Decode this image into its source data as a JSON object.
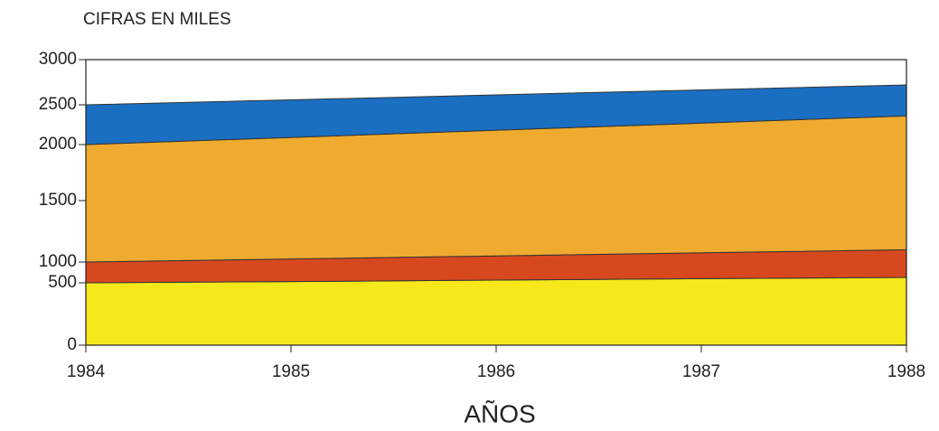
{
  "chart_data": {
    "type": "stacked-area",
    "title": "CIFRAS EN MILES",
    "x_label": "AÑOS",
    "x": [
      1984,
      1985,
      1986,
      1987,
      1988
    ],
    "xlim": [
      1984,
      1988
    ],
    "xticks": [
      1984,
      1985,
      1986,
      1987,
      1988
    ],
    "ylim": [
      0,
      3000
    ],
    "yticks": [
      0,
      500,
      1000,
      1500,
      2000,
      2500,
      3000
    ],
    "series": [
      {
        "color": "#f6e81a",
        "values": [
          500,
          530,
          565,
          600,
          630
        ]
      },
      {
        "color": "#d8481f",
        "values": [
          500,
          495,
          485,
          475,
          470
        ]
      },
      {
        "color": "#efab30",
        "values": [
          1000,
          1065,
          1130,
          1195,
          1260
        ]
      },
      {
        "color": "#1a6fc2",
        "values": [
          500,
          465,
          430,
          395,
          360
        ]
      }
    ]
  }
}
